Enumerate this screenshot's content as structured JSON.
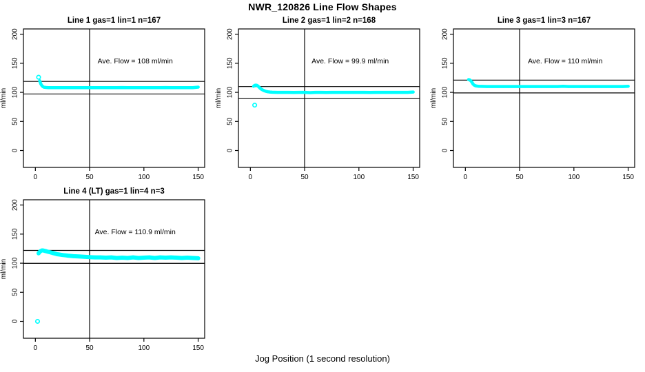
{
  "page": {
    "title": "NWR_120826  Line Flow Shapes",
    "xlabel": "Jog Position (1 second resolution)"
  },
  "colors": {
    "data_point": "#00FFFF",
    "axis": "#000000",
    "background": "#FFFFFF"
  },
  "chart_data": [
    {
      "type": "scatter",
      "title": "Line 1 gas=1 lin=1 n=167",
      "line": 1,
      "gas": 1,
      "lin": 1,
      "n": 167,
      "annotation": "Ave. Flow =  108  ml/min",
      "ave_flow": 108,
      "ylabel": "ml/min",
      "xticks": [
        0,
        50,
        100,
        150
      ],
      "yticks": [
        0,
        50,
        100,
        150,
        200
      ],
      "xlim": [
        -11,
        156
      ],
      "ylim": [
        -29,
        209
      ],
      "vline": 50,
      "hlines": [
        118.8,
        97.2
      ],
      "band_width": 4.5,
      "points": [
        [
          4,
          120
        ],
        [
          5,
          114.5
        ],
        [
          6,
          111.5
        ],
        [
          7,
          109.8
        ],
        [
          8,
          108.8
        ],
        [
          10,
          108.3
        ],
        [
          12,
          108.1
        ],
        [
          15,
          108
        ],
        [
          20,
          108
        ],
        [
          25,
          108
        ],
        [
          30,
          108
        ],
        [
          35,
          108
        ],
        [
          40,
          108
        ],
        [
          45,
          108
        ],
        [
          50,
          108
        ],
        [
          55,
          108
        ],
        [
          60,
          108
        ],
        [
          65,
          108
        ],
        [
          70,
          108
        ],
        [
          75,
          108
        ],
        [
          80,
          108.2
        ],
        [
          85,
          108
        ],
        [
          90,
          108
        ],
        [
          95,
          108
        ],
        [
          100,
          108
        ],
        [
          105,
          108
        ],
        [
          110,
          108
        ],
        [
          115,
          108
        ],
        [
          120,
          108.2
        ],
        [
          125,
          108
        ],
        [
          130,
          108
        ],
        [
          135,
          108
        ],
        [
          140,
          108
        ],
        [
          145,
          108
        ],
        [
          150,
          109
        ]
      ],
      "outliers": [
        [
          3,
          126
        ]
      ]
    },
    {
      "type": "scatter",
      "title": "Line 2 gas=1 lin=2 n=168",
      "line": 2,
      "gas": 1,
      "lin": 2,
      "n": 168,
      "annotation": "Ave. Flow =  99.9  ml/min",
      "ave_flow": 99.9,
      "ylabel": "ml/min",
      "xticks": [
        0,
        50,
        100,
        150
      ],
      "yticks": [
        0,
        50,
        100,
        150,
        200
      ],
      "xlim": [
        -11,
        156
      ],
      "ylim": [
        -29,
        209
      ],
      "vline": 50,
      "hlines": [
        109.9,
        89.9
      ],
      "band_width": 4.5,
      "points": [
        [
          3,
          110.5
        ],
        [
          4,
          112
        ],
        [
          5,
          112.5
        ],
        [
          6,
          112
        ],
        [
          7,
          110.8
        ],
        [
          8,
          109
        ],
        [
          9,
          107
        ],
        [
          10,
          105.5
        ],
        [
          11,
          104.5
        ],
        [
          12,
          103.5
        ],
        [
          13,
          102.5
        ],
        [
          14,
          102
        ],
        [
          16,
          101
        ],
        [
          18,
          100.5
        ],
        [
          20,
          100.2
        ],
        [
          25,
          100
        ],
        [
          30,
          100
        ],
        [
          35,
          100
        ],
        [
          40,
          99.8
        ],
        [
          45,
          100
        ],
        [
          50,
          100
        ],
        [
          55,
          99.5
        ],
        [
          60,
          100
        ],
        [
          65,
          100
        ],
        [
          70,
          99.8
        ],
        [
          75,
          100
        ],
        [
          80,
          100
        ],
        [
          85,
          100
        ],
        [
          90,
          100
        ],
        [
          95,
          100
        ],
        [
          100,
          100
        ],
        [
          105,
          100
        ],
        [
          110,
          99.8
        ],
        [
          115,
          100
        ],
        [
          120,
          100
        ],
        [
          125,
          100
        ],
        [
          130,
          100
        ],
        [
          135,
          100
        ],
        [
          140,
          100
        ],
        [
          145,
          100
        ],
        [
          150,
          100.5
        ]
      ],
      "outliers": [
        [
          4,
          78
        ]
      ]
    },
    {
      "type": "scatter",
      "title": "Line 3 gas=1 lin=3 n=167",
      "line": 3,
      "gas": 1,
      "lin": 3,
      "n": 167,
      "annotation": "Ave. Flow =  110  ml/min",
      "ave_flow": 110,
      "ylabel": "ml/min",
      "xticks": [
        0,
        50,
        100,
        150
      ],
      "yticks": [
        0,
        50,
        100,
        150,
        200
      ],
      "xlim": [
        -11,
        156
      ],
      "ylim": [
        -29,
        209
      ],
      "vline": 50,
      "hlines": [
        121,
        99
      ],
      "band_width": 4.5,
      "points": [
        [
          3,
          122
        ],
        [
          4,
          121.5
        ],
        [
          5,
          120
        ],
        [
          6,
          117.5
        ],
        [
          7,
          114.5
        ],
        [
          8,
          112.5
        ],
        [
          9,
          111.5
        ],
        [
          10,
          111
        ],
        [
          12,
          110.5
        ],
        [
          15,
          110.2
        ],
        [
          20,
          110
        ],
        [
          25,
          110
        ],
        [
          30,
          110
        ],
        [
          35,
          110
        ],
        [
          40,
          110
        ],
        [
          45,
          110
        ],
        [
          50,
          110
        ],
        [
          55,
          110
        ],
        [
          60,
          110
        ],
        [
          65,
          110
        ],
        [
          70,
          110
        ],
        [
          75,
          110
        ],
        [
          80,
          110
        ],
        [
          85,
          110
        ],
        [
          90,
          110.4
        ],
        [
          95,
          110
        ],
        [
          100,
          110
        ],
        [
          105,
          110
        ],
        [
          110,
          110
        ],
        [
          115,
          110
        ],
        [
          120,
          110
        ],
        [
          125,
          110
        ],
        [
          130,
          110
        ],
        [
          135,
          110
        ],
        [
          140,
          110
        ],
        [
          145,
          110
        ],
        [
          150,
          110.5
        ]
      ],
      "outliers": []
    },
    {
      "type": "scatter",
      "title": "Line 4 (LT) gas=1 lin=4 n=3",
      "line": 4,
      "gas": 1,
      "lin": 4,
      "n": 3,
      "annotation": "Ave. Flow =  110.9  ml/min",
      "ave_flow": 110.9,
      "ylabel": "ml/min",
      "xticks": [
        0,
        50,
        100,
        150
      ],
      "yticks": [
        0,
        50,
        100,
        150,
        200
      ],
      "xlim": [
        -11,
        156
      ],
      "ylim": [
        -29,
        209
      ],
      "vline": 50,
      "hlines": [
        122,
        99.8
      ],
      "band_width": 6,
      "points": [
        [
          3,
          117
        ],
        [
          4,
          119.5
        ],
        [
          5,
          121
        ],
        [
          6,
          122
        ],
        [
          7,
          122
        ],
        [
          8,
          121.5
        ],
        [
          9,
          121
        ],
        [
          10,
          120.5
        ],
        [
          12,
          119.5
        ],
        [
          14,
          118.5
        ],
        [
          16,
          117.5
        ],
        [
          18,
          116.5
        ],
        [
          20,
          115.5
        ],
        [
          22,
          115
        ],
        [
          25,
          114
        ],
        [
          28,
          113.5
        ],
        [
          30,
          113
        ],
        [
          35,
          112
        ],
        [
          40,
          111.5
        ],
        [
          45,
          111
        ],
        [
          50,
          110.5
        ],
        [
          55,
          110
        ],
        [
          60,
          110
        ],
        [
          65,
          109.5
        ],
        [
          70,
          110
        ],
        [
          75,
          109
        ],
        [
          80,
          109.5
        ],
        [
          85,
          109
        ],
        [
          90,
          110
        ],
        [
          95,
          109
        ],
        [
          100,
          109.5
        ],
        [
          105,
          110
        ],
        [
          110,
          109
        ],
        [
          115,
          110
        ],
        [
          120,
          109.5
        ],
        [
          125,
          110
        ],
        [
          130,
          109.5
        ],
        [
          135,
          109
        ],
        [
          140,
          109.5
        ],
        [
          145,
          109
        ],
        [
          150,
          108.5
        ]
      ],
      "outliers": [
        [
          2,
          0
        ]
      ]
    }
  ]
}
